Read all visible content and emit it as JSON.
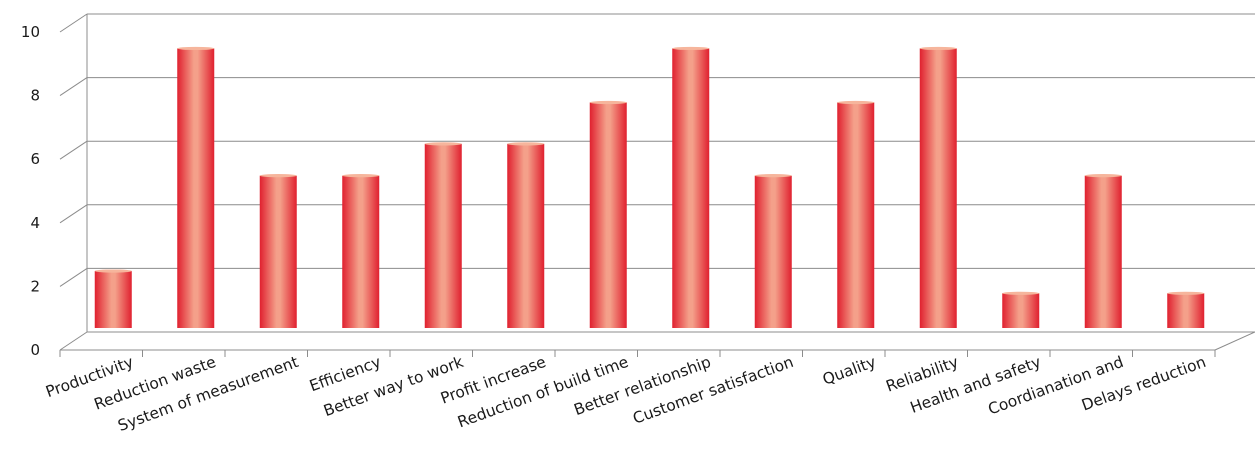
{
  "chart_data": {
    "type": "bar",
    "categories": [
      "Productivity",
      "Reduction waste",
      "System of measurement",
      "Efficiency",
      "Better way to work",
      "Profit increase",
      "Reduction of build time",
      "Better relationship",
      "Customer satisfaction",
      "Quality",
      "Reliability",
      "Health and safety",
      "Coordianation and",
      "Delays reduction"
    ],
    "values": [
      2.2,
      9.2,
      5.2,
      5.2,
      6.2,
      6.2,
      7.5,
      9.2,
      5.2,
      7.5,
      9.2,
      1.5,
      5.2,
      1.5
    ],
    "yticks": [
      "0",
      "2",
      "4",
      "6",
      "8",
      "10"
    ],
    "ylim": [
      0,
      10
    ],
    "grid": true,
    "legend": "none",
    "colors": {
      "bar_edge": "#e0202f",
      "bar_center": "#f4a08a",
      "bar_top": "#f6b59c",
      "grid": "#8c8c8c",
      "text": "#1a1a1a"
    }
  }
}
